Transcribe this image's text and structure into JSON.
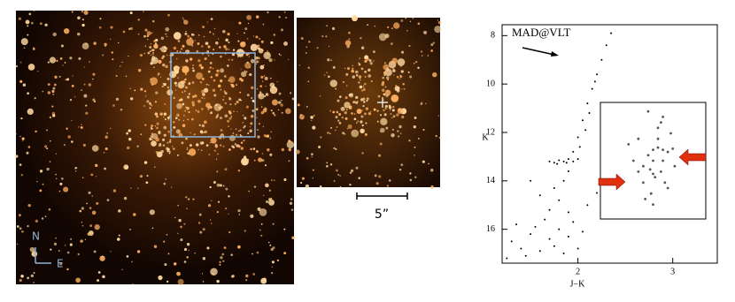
{
  "images": {
    "compass_north": "N",
    "compass_east": "E",
    "scale_bar_label": "5”"
  },
  "chart_data": [
    {
      "type": "scatter",
      "annotation": "MAD@VLT",
      "x_label": "J−K",
      "y_label": "K",
      "color": "#000000",
      "x": [
        1.3,
        1.4,
        1.5,
        1.6,
        1.7,
        1.8,
        1.45,
        1.55,
        1.65,
        1.75,
        1.9,
        2.0,
        1.35,
        1.85,
        1.95,
        1.7,
        1.8,
        1.75,
        1.85,
        1.6,
        1.9,
        1.7,
        1.75,
        1.8,
        1.85,
        1.9,
        1.95,
        2.0,
        1.78,
        1.88,
        1.9,
        1.95,
        2.0,
        2.05,
        2.1,
        2.15,
        2.2,
        2.25,
        2.3,
        2.35,
        2.12,
        2.02,
        2.18,
        2.08,
        2.1,
        1.5,
        2.2,
        1.25,
        2.05
      ],
      "y": [
        16.5,
        16.8,
        16.2,
        16.9,
        16.4,
        16.0,
        17.1,
        15.9,
        15.6,
        16.7,
        16.3,
        16.8,
        15.8,
        17.0,
        15.7,
        15.2,
        14.8,
        14.3,
        14.0,
        14.6,
        15.3,
        13.2,
        13.25,
        13.15,
        13.2,
        13.1,
        13.2,
        13.1,
        13.3,
        13.25,
        13.6,
        12.8,
        12.2,
        11.5,
        10.8,
        10.2,
        9.6,
        9.0,
        8.4,
        7.9,
        11.2,
        12.6,
        9.9,
        11.9,
        15.0,
        14.0,
        14.5,
        17.2,
        16.1
      ],
      "xlim": [
        1.2,
        3.47
      ],
      "ylim": [
        17.4,
        7.55
      ],
      "xticks": [
        2,
        3
      ],
      "yticks": [
        8,
        10,
        12,
        14,
        16
      ]
    },
    {
      "type": "scatter",
      "color": "#555555",
      "x": [
        0.5,
        0.55,
        0.6,
        0.65,
        0.7,
        0.45,
        0.4,
        0.35,
        0.5,
        0.52,
        0.58,
        0.62,
        0.48,
        0.42,
        0.55,
        0.6,
        0.3,
        0.25,
        0.68,
        0.72,
        0.5,
        0.45,
        0.55,
        0.6,
        0.4,
        0.5,
        0.65,
        0.35,
        0.58,
        0.47
      ],
      "y": [
        0.6,
        0.62,
        0.6,
        0.58,
        0.61,
        0.55,
        0.45,
        0.4,
        0.38,
        0.35,
        0.4,
        0.3,
        0.2,
        0.15,
        0.8,
        0.9,
        0.5,
        0.65,
        0.75,
        0.45,
        0.1,
        0.95,
        0.7,
        0.5,
        0.3,
        0.5,
        0.25,
        0.7,
        0.85,
        0.42
      ],
      "xlim": [
        0,
        1
      ],
      "ylim": [
        0,
        1
      ]
    }
  ]
}
